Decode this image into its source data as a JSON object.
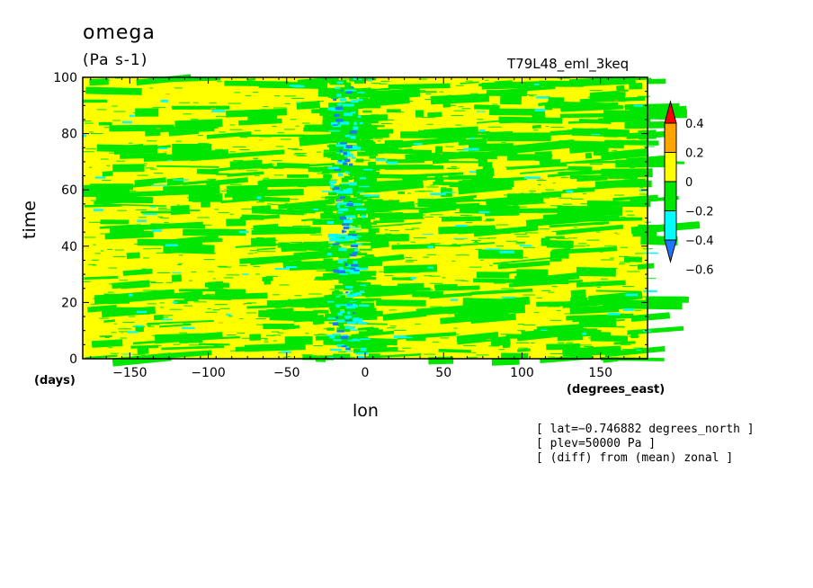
{
  "chart_data": {
    "type": "heatmap",
    "title": "omega",
    "units": "(Pa s-1)",
    "experiment": "T79L48_eml_3keq",
    "xlabel": "lon",
    "ylabel": "time",
    "x_unit": "(degrees_east)",
    "y_unit": "(days)",
    "xlim": [
      -180,
      180
    ],
    "ylim": [
      0,
      100
    ],
    "x_ticks": [
      -150,
      -100,
      -50,
      0,
      50,
      100,
      150
    ],
    "y_ticks": [
      0,
      20,
      40,
      60,
      80,
      100
    ],
    "colorbar": {
      "levels": [
        -0.6,
        -0.4,
        -0.2,
        0,
        0.2,
        0.4
      ],
      "labels": [
        "0.4",
        "0.2",
        "0",
        "−0.2",
        "−0.4",
        "−0.6"
      ],
      "colors": [
        "#1e78ff",
        "#00ffff",
        "#00e600",
        "#ffff00",
        "#ffa500",
        "#ff0000"
      ],
      "colors_desc_note": "ordered from lowest bin (< -0.4) to highest (> 0.4)",
      "extend": "both"
    },
    "feature": "Negative (upward) omega concentrated near lon 0 to -20 across all times; background alternates yellow (0 to 0.2) and green (-0.2 to 0)."
  },
  "annotations": [
    "[ lat=−0.746882 degrees_north ]",
    "[ plev=50000 Pa ]",
    "[ (diff) from (mean) zonal ]"
  ]
}
